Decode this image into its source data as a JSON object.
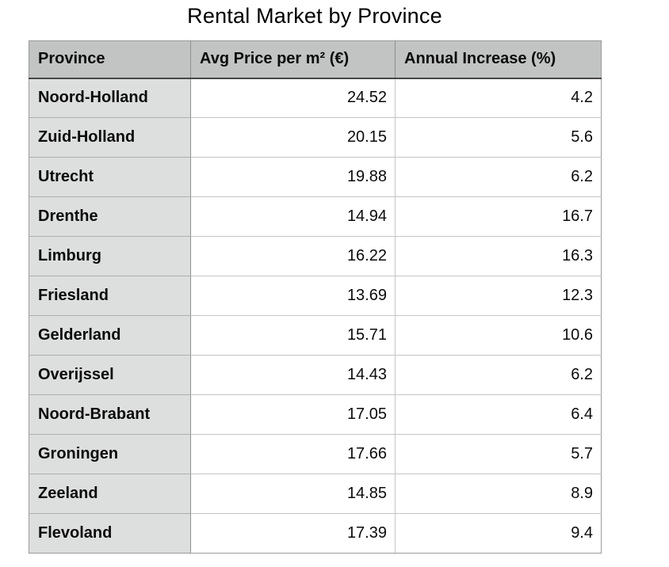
{
  "title": "Rental Market by Province",
  "table": {
    "columns": [
      "Province",
      "Avg Price per m² (€)",
      "Annual Increase (%)"
    ],
    "rows": [
      {
        "province": "Noord-Holland",
        "price": "24.52",
        "increase": "4.2"
      },
      {
        "province": "Zuid-Holland",
        "price": "20.15",
        "increase": "5.6"
      },
      {
        "province": "Utrecht",
        "price": "19.88",
        "increase": "6.2"
      },
      {
        "province": "Drenthe",
        "price": "14.94",
        "increase": "16.7"
      },
      {
        "province": "Limburg",
        "price": "16.22",
        "increase": "16.3"
      },
      {
        "province": "Friesland",
        "price": "13.69",
        "increase": "12.3"
      },
      {
        "province": "Gelderland",
        "price": "15.71",
        "increase": "10.6"
      },
      {
        "province": "Overijssel",
        "price": "14.43",
        "increase": "6.2"
      },
      {
        "province": "Noord-Brabant",
        "price": "17.05",
        "increase": "6.4"
      },
      {
        "province": "Groningen",
        "price": "17.66",
        "increase": "5.7"
      },
      {
        "province": "Zeeland",
        "price": "14.85",
        "increase": "8.9"
      },
      {
        "province": "Flevoland",
        "price": "17.39",
        "increase": "9.4"
      }
    ]
  },
  "chart_data": {
    "type": "table",
    "title": "Rental Market by Province",
    "categories": [
      "Noord-Holland",
      "Zuid-Holland",
      "Utrecht",
      "Drenthe",
      "Limburg",
      "Friesland",
      "Gelderland",
      "Overijssel",
      "Noord-Brabant",
      "Groningen",
      "Zeeland",
      "Flevoland"
    ],
    "series": [
      {
        "name": "Avg Price per m² (€)",
        "values": [
          24.52,
          20.15,
          19.88,
          14.94,
          16.22,
          13.69,
          15.71,
          14.43,
          17.05,
          17.66,
          14.85,
          17.39
        ]
      },
      {
        "name": "Annual Increase (%)",
        "values": [
          4.2,
          5.6,
          6.2,
          16.7,
          16.3,
          12.3,
          10.6,
          6.2,
          6.4,
          5.7,
          8.9,
          9.4
        ]
      }
    ]
  },
  "colors": {
    "header_bg": "#c1c4c3",
    "row_label_bg": "#dddfde",
    "header_rule": "#474747",
    "grid_line": "#9b9b9b",
    "page_bg": "#ffffff",
    "text": "#0b0b0b"
  }
}
